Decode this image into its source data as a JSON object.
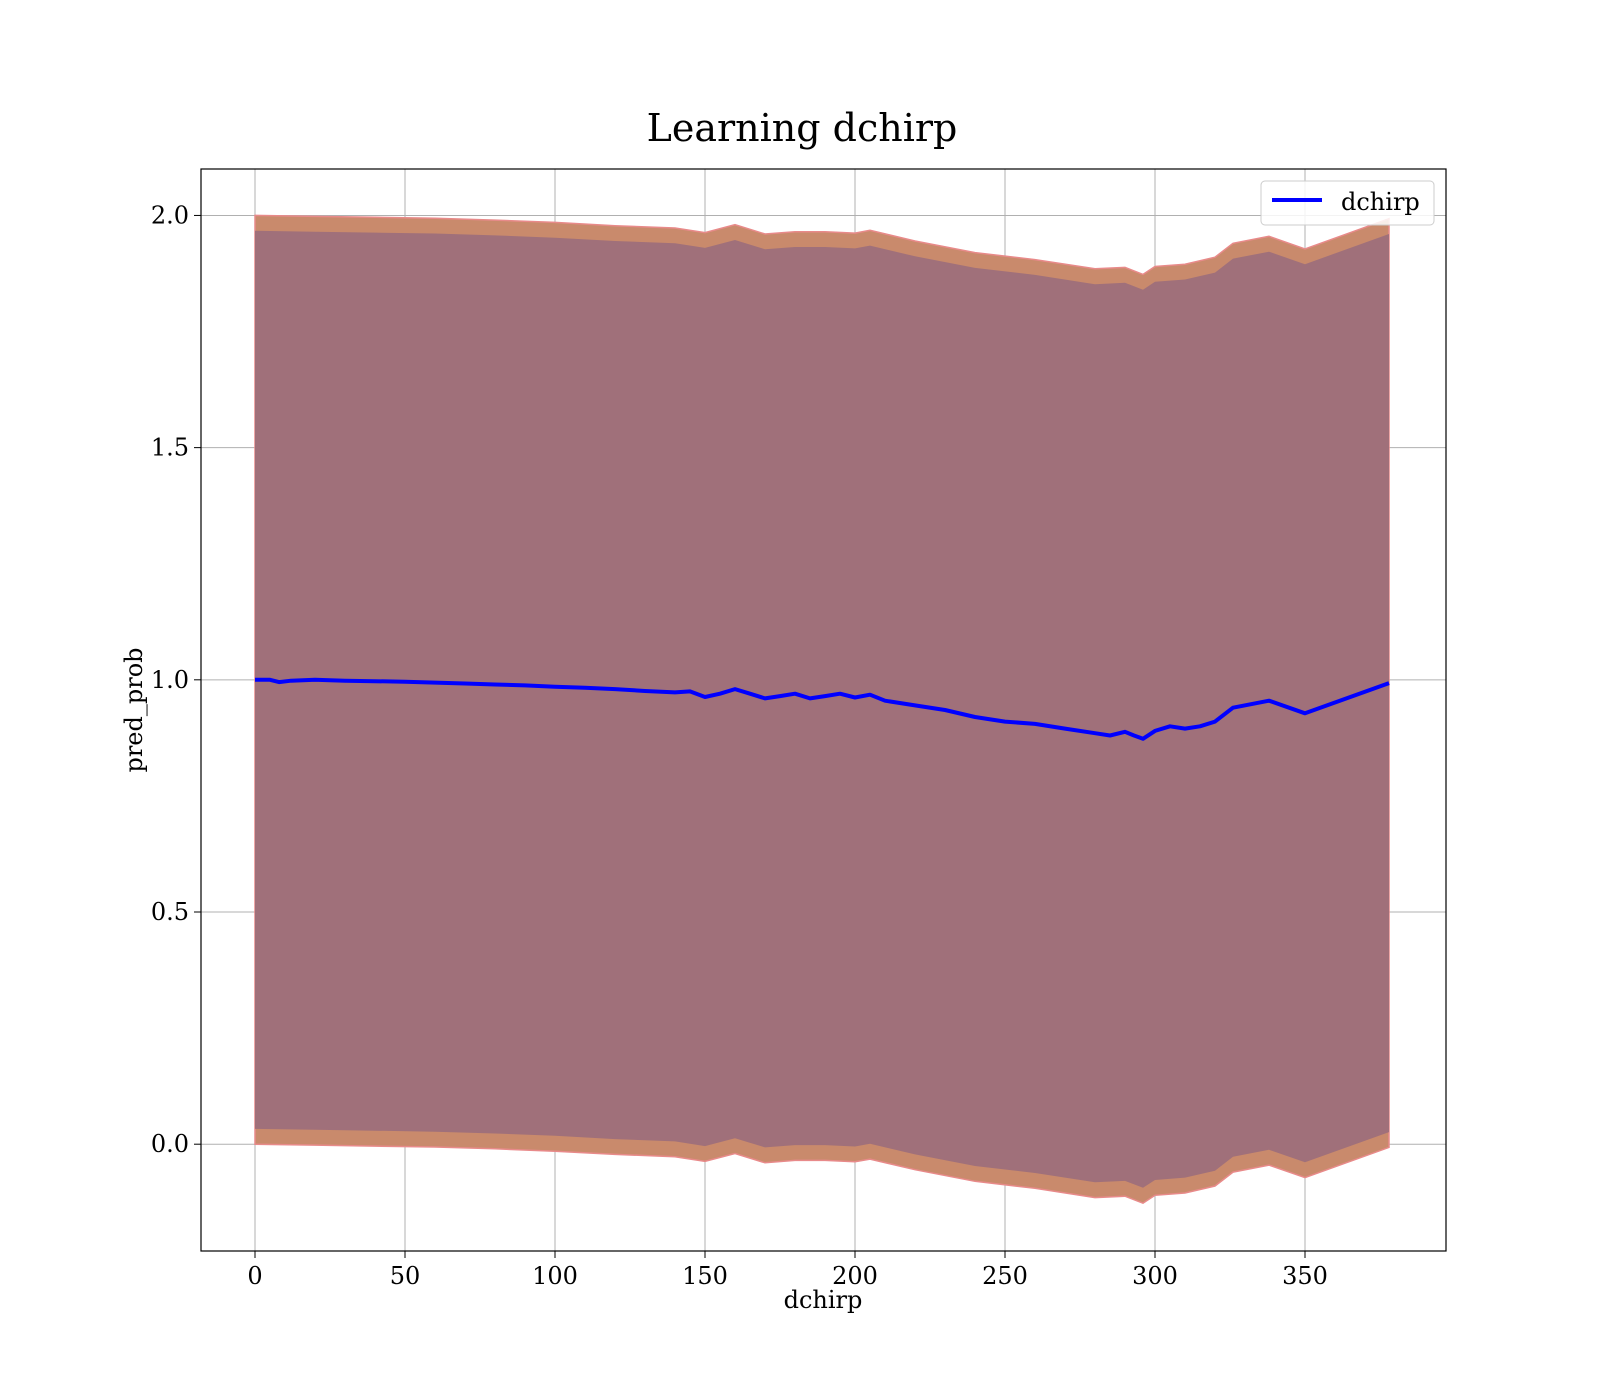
{
  "chart_data": {
    "type": "line",
    "title": "Learning dchirp",
    "xlabel": "dchirp",
    "ylabel": "pred_prob",
    "xlim": [
      -18,
      397
    ],
    "ylim": [
      -0.23,
      2.1
    ],
    "grid": true,
    "legend_position": "top-right",
    "xticks": [
      0,
      50,
      100,
      150,
      200,
      250,
      300,
      350
    ],
    "yticks": [
      0.0,
      0.5,
      1.0,
      1.5,
      2.0
    ],
    "xtick_labels": [
      "0",
      "50",
      "100",
      "150",
      "200",
      "250",
      "300",
      "350"
    ],
    "ytick_labels": [
      "0.0",
      "0.5",
      "1.0",
      "1.5",
      "2.0"
    ],
    "series": [
      {
        "name": "dchirp",
        "color": "#0000ff",
        "x": [
          0,
          5,
          8,
          12,
          20,
          30,
          40,
          50,
          60,
          70,
          80,
          90,
          100,
          110,
          120,
          130,
          140,
          145,
          150,
          155,
          160,
          165,
          170,
          175,
          180,
          185,
          190,
          195,
          200,
          205,
          210,
          220,
          230,
          240,
          250,
          260,
          270,
          280,
          285,
          290,
          293,
          296,
          300,
          305,
          310,
          315,
          320,
          326,
          338,
          350,
          378
        ],
        "y": [
          1.0,
          1.0,
          0.995,
          0.998,
          1.0,
          0.998,
          0.997,
          0.996,
          0.994,
          0.992,
          0.99,
          0.988,
          0.985,
          0.983,
          0.98,
          0.976,
          0.973,
          0.975,
          0.963,
          0.97,
          0.98,
          0.97,
          0.96,
          0.965,
          0.97,
          0.96,
          0.965,
          0.97,
          0.962,
          0.968,
          0.955,
          0.945,
          0.935,
          0.92,
          0.91,
          0.905,
          0.895,
          0.885,
          0.88,
          0.888,
          0.88,
          0.873,
          0.89,
          0.9,
          0.895,
          0.9,
          0.91,
          0.94,
          0.955,
          0.928,
          0.993
        ]
      }
    ],
    "bands": [
      {
        "name": "outer",
        "color": "#c98a6c",
        "edge_color": "#e88a8a",
        "x": [
          0,
          20,
          40,
          60,
          80,
          100,
          120,
          140,
          150,
          160,
          170,
          180,
          190,
          200,
          205,
          220,
          240,
          260,
          280,
          290,
          296,
          300,
          310,
          320,
          326,
          338,
          350,
          378
        ],
        "upper": [
          2.0,
          1.998,
          1.996,
          1.994,
          1.99,
          1.985,
          1.978,
          1.973,
          1.963,
          1.98,
          1.96,
          1.965,
          1.965,
          1.962,
          1.968,
          1.945,
          1.92,
          1.905,
          1.885,
          1.888,
          1.873,
          1.89,
          1.895,
          1.91,
          1.94,
          1.955,
          1.928,
          1.993
        ],
        "lower": [
          0.0,
          -0.002,
          -0.004,
          -0.006,
          -0.01,
          -0.015,
          -0.022,
          -0.027,
          -0.037,
          -0.02,
          -0.04,
          -0.035,
          -0.035,
          -0.038,
          -0.032,
          -0.055,
          -0.08,
          -0.095,
          -0.115,
          -0.112,
          -0.127,
          -0.11,
          -0.105,
          -0.09,
          -0.06,
          -0.045,
          -0.072,
          -0.007
        ]
      },
      {
        "name": "inner",
        "color": "#a0707a",
        "x": [
          0,
          20,
          40,
          60,
          80,
          100,
          120,
          140,
          150,
          160,
          170,
          180,
          190,
          200,
          205,
          220,
          240,
          260,
          280,
          290,
          296,
          300,
          310,
          320,
          326,
          338,
          350,
          378
        ],
        "upper": [
          1.967,
          1.965,
          1.963,
          1.961,
          1.957,
          1.952,
          1.945,
          1.94,
          1.93,
          1.947,
          1.927,
          1.932,
          1.932,
          1.929,
          1.935,
          1.912,
          1.887,
          1.872,
          1.852,
          1.855,
          1.84,
          1.857,
          1.862,
          1.877,
          1.907,
          1.922,
          1.895,
          1.96
        ],
        "lower": [
          0.033,
          0.031,
          0.029,
          0.027,
          0.023,
          0.018,
          0.011,
          0.006,
          -0.004,
          0.013,
          -0.007,
          -0.002,
          -0.002,
          -0.005,
          0.001,
          -0.022,
          -0.047,
          -0.062,
          -0.082,
          -0.079,
          -0.094,
          -0.077,
          -0.072,
          -0.057,
          -0.027,
          -0.012,
          -0.039,
          0.026
        ]
      }
    ]
  }
}
